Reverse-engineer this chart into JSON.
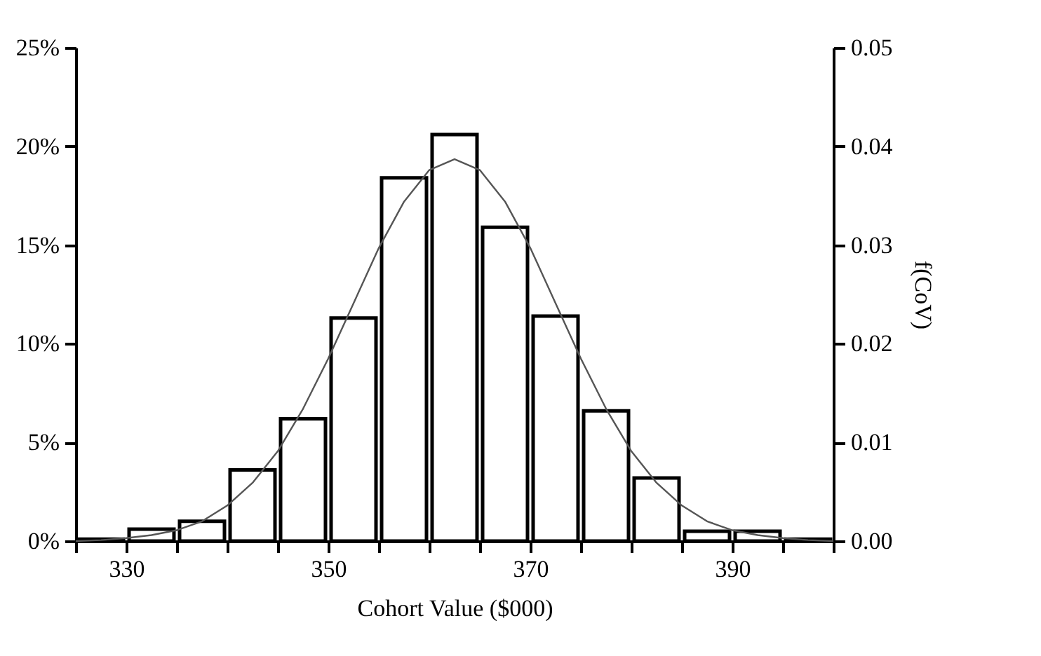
{
  "chart_data": {
    "type": "histogram",
    "xlabel": "Cohort Value ($000)",
    "y2label": "f(CoV)",
    "bins": [
      325,
      330,
      335,
      340,
      345,
      350,
      355,
      360,
      365,
      370,
      375,
      380,
      385,
      390,
      395,
      400
    ],
    "values": [
      0.1,
      0.6,
      1.0,
      3.6,
      6.2,
      11.3,
      18.4,
      20.6,
      15.9,
      11.4,
      6.6,
      3.2,
      0.5,
      0.5,
      0.1
    ],
    "color": "#ffffff",
    "series": [
      {
        "type": "line",
        "axis": "y2",
        "color": "#555555",
        "x": [
          325,
          327.5,
          330,
          332.5,
          335,
          337.5,
          340,
          342.5,
          345,
          347.5,
          350,
          352.5,
          355,
          357.5,
          360,
          362.5,
          365,
          367.5,
          370,
          372.5,
          375,
          377.5,
          380,
          382.5,
          385,
          387.5,
          390,
          392.5,
          395,
          397.5,
          400
        ],
        "values": [
          0.0,
          0.0001,
          0.0003,
          0.0006,
          0.0011,
          0.002,
          0.0036,
          0.0059,
          0.0091,
          0.0134,
          0.0185,
          0.0241,
          0.0297,
          0.0344,
          0.0376,
          0.0387,
          0.0376,
          0.0344,
          0.0297,
          0.0241,
          0.0185,
          0.0134,
          0.0091,
          0.0059,
          0.0036,
          0.002,
          0.0011,
          0.0006,
          0.0003,
          0.0001,
          0.0
        ]
      }
    ],
    "xlim": [
      325,
      400
    ],
    "xticks": [
      {
        "value": 325,
        "label": null
      },
      330,
      {
        "value": 335,
        "label": null
      },
      {
        "value": 340,
        "label": null
      },
      {
        "value": 345,
        "label": null
      },
      350,
      {
        "value": 355,
        "label": null
      },
      {
        "value": 360,
        "label": null
      },
      {
        "value": 365,
        "label": null
      },
      370,
      {
        "value": 375,
        "label": null
      },
      {
        "value": 380,
        "label": null
      },
      {
        "value": 385,
        "label": null
      },
      390,
      {
        "value": 395,
        "label": null
      },
      {
        "value": 400,
        "label": null
      }
    ],
    "ylim": [
      0,
      25
    ],
    "yticks": [
      {
        "value": 0,
        "label": "0%"
      },
      {
        "value": 5,
        "label": "5%"
      },
      {
        "value": 10,
        "label": "10%"
      },
      {
        "value": 15,
        "label": "15%"
      },
      {
        "value": 20,
        "label": "20%"
      },
      {
        "value": 25,
        "label": "25%"
      }
    ],
    "y2lim": [
      0,
      0.05
    ],
    "y2ticks": [
      {
        "value": 0,
        "label": "0.00"
      },
      {
        "value": 0.01,
        "label": "0.01"
      },
      {
        "value": 0.02,
        "label": "0.02"
      },
      {
        "value": 0.03,
        "label": "0.03"
      },
      {
        "value": 0.04,
        "label": "0.04"
      },
      {
        "value": 0.05,
        "label": "0.05"
      }
    ],
    "grid": false
  }
}
